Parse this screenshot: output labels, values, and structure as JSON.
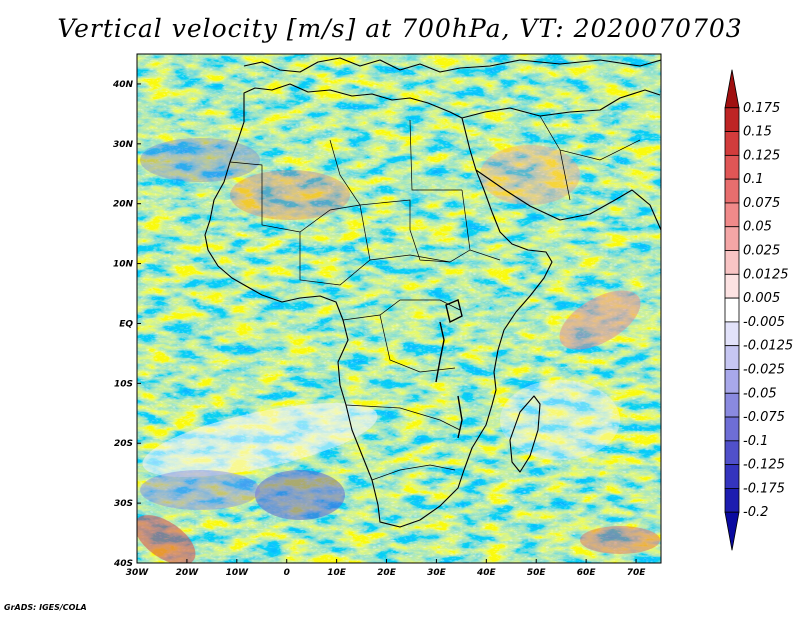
{
  "title": "Vertical velocity [m/s] at 700hPa, VT: 2020070703",
  "credit": "GrADS: IGES/COLA",
  "map": {
    "variable": "Vertical velocity",
    "units": "m/s",
    "level": "700hPa",
    "valid_time": "2020070703",
    "lon_range": [
      -30,
      75
    ],
    "lat_range": [
      -40,
      45
    ],
    "x_ticks": [
      "30W",
      "20W",
      "10W",
      "0",
      "10E",
      "20E",
      "30E",
      "40E",
      "50E",
      "60E",
      "70E"
    ],
    "x_tick_values": [
      -30,
      -20,
      -10,
      0,
      10,
      20,
      30,
      40,
      50,
      60,
      70
    ],
    "y_ticks": [
      "40N",
      "30N",
      "20N",
      "10N",
      "EQ",
      "10S",
      "20S",
      "30S",
      "40S"
    ],
    "y_tick_values": [
      40,
      30,
      20,
      10,
      0,
      -10,
      -20,
      -30,
      -40
    ]
  },
  "colorbar": {
    "labels": [
      "0.175",
      "0.15",
      "0.125",
      "0.1",
      "0.075",
      "0.05",
      "0.025",
      "0.0125",
      "0.005",
      "-0.005",
      "-0.0125",
      "-0.025",
      "-0.05",
      "-0.075",
      "-0.1",
      "-0.125",
      "-0.175",
      "-0.2"
    ],
    "colors": [
      "#a01010",
      "#be2424",
      "#d23c3c",
      "#e05656",
      "#e86e6e",
      "#f08a8a",
      "#f4a6a6",
      "#f8c4c4",
      "#fce2e2",
      "#ffffff",
      "#e2e2fa",
      "#c6c6f2",
      "#a8a8ea",
      "#8a8ae0",
      "#6e6ed6",
      "#5050ca",
      "#3434be",
      "#1c1cb0",
      "#0a0aa0"
    ]
  }
}
